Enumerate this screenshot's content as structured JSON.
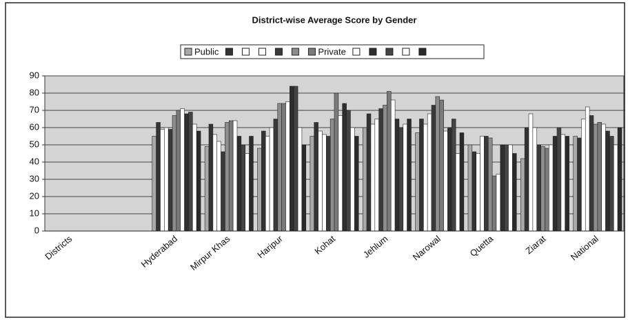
{
  "chart_data": {
    "type": "bar",
    "title": "District-wise Average Score by Gender",
    "categories": [
      "Districts",
      null,
      "Hyderabad",
      "Mirpur Khas",
      "Haripur",
      "Kohat",
      "Jehlum",
      "Narowal",
      "Quetta",
      "Ziarat",
      "National"
    ],
    "series": [
      {
        "name": "Public",
        "color": "#a8a8a8",
        "values": [
          null,
          null,
          55,
          49,
          48,
          55,
          60,
          57,
          50,
          42,
          55
        ]
      },
      {
        "name": null,
        "color": "#333333",
        "values": [
          null,
          null,
          63,
          62,
          58,
          63,
          68,
          65,
          46,
          60,
          54
        ]
      },
      {
        "name": null,
        "color": "#ffffff",
        "values": [
          null,
          null,
          59,
          56,
          55,
          58,
          62,
          62,
          45,
          68,
          65
        ]
      },
      {
        "name": null,
        "color": "#ffffff",
        "values": [
          null,
          null,
          60,
          52,
          60,
          56,
          65,
          68,
          55,
          60,
          72
        ]
      },
      {
        "name": null,
        "color": "#3a3a3a",
        "values": [
          null,
          null,
          59,
          46,
          65,
          55,
          71,
          73,
          55,
          50,
          67
        ]
      },
      {
        "name": null,
        "color": "#8c8c8c",
        "values": [
          null,
          null,
          67,
          63,
          74,
          65,
          73,
          78,
          54,
          49,
          62
        ]
      },
      {
        "name": "Private",
        "color": "#7a7a7a",
        "values": [
          null,
          null,
          70,
          64,
          74,
          80,
          81,
          76,
          32,
          48,
          63
        ]
      },
      {
        "name": null,
        "color": "#ffffff",
        "values": [
          null,
          null,
          71,
          64,
          75,
          67,
          76,
          58,
          33,
          50,
          62
        ]
      },
      {
        "name": null,
        "color": "#2e2e2e",
        "values": [
          null,
          null,
          68,
          55,
          84,
          74,
          65,
          60,
          50,
          55,
          58
        ]
      },
      {
        "name": null,
        "color": "#444444",
        "values": [
          null,
          null,
          69,
          50,
          84,
          70,
          60,
          65,
          50,
          60,
          55
        ]
      },
      {
        "name": null,
        "color": "#ffffff",
        "values": [
          null,
          null,
          62,
          45,
          60,
          60,
          62,
          45,
          50,
          56,
          50
        ]
      },
      {
        "name": null,
        "color": "#2a2a2a",
        "values": [
          null,
          null,
          58,
          55,
          50,
          55,
          65,
          57,
          45,
          55,
          60
        ]
      }
    ],
    "ylim": [
      0,
      90
    ],
    "yticks": [
      0,
      10,
      20,
      30,
      40,
      50,
      60,
      70,
      80,
      90
    ],
    "grid": true
  }
}
